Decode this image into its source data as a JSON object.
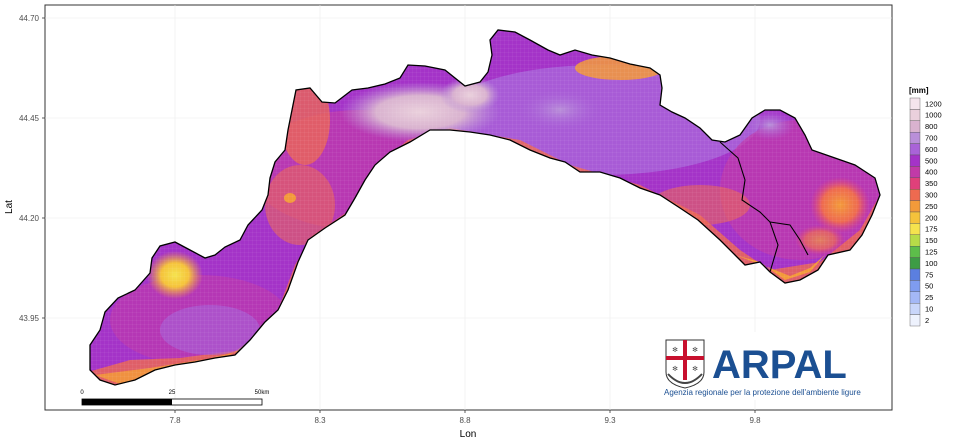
{
  "axes": {
    "xlabel": "Lon",
    "ylabel": "Lat",
    "x_ticks": [
      "7.8",
      "8.3",
      "8.8",
      "9.3",
      "9.8"
    ],
    "y_ticks": [
      "44.70",
      "44.45",
      "44.20",
      "43.95"
    ]
  },
  "legend": {
    "title": "[mm]",
    "levels": [
      {
        "label": "1200",
        "color": "#f4e4ec"
      },
      {
        "label": "1000",
        "color": "#ead0dc"
      },
      {
        "label": "800",
        "color": "#d9b2cf"
      },
      {
        "label": "700",
        "color": "#b98fd9"
      },
      {
        "label": "600",
        "color": "#a963d8"
      },
      {
        "label": "500",
        "color": "#a433c8"
      },
      {
        "label": "400",
        "color": "#c13aa8"
      },
      {
        "label": "350",
        "color": "#e0407a"
      },
      {
        "label": "300",
        "color": "#ee6a50"
      },
      {
        "label": "250",
        "color": "#f39a3a"
      },
      {
        "label": "200",
        "color": "#f5c23b"
      },
      {
        "label": "175",
        "color": "#f5e34e"
      },
      {
        "label": "150",
        "color": "#b7dc48"
      },
      {
        "label": "125",
        "color": "#5dbe4a"
      },
      {
        "label": "100",
        "color": "#3d9c45"
      },
      {
        "label": "75",
        "color": "#5b7fe0"
      },
      {
        "label": "50",
        "color": "#7f9cf0"
      },
      {
        "label": "25",
        "color": "#a4b8f6"
      },
      {
        "label": "10",
        "color": "#c9d6fa"
      },
      {
        "label": "2",
        "color": "#eef2fd"
      }
    ]
  },
  "scale_bar": {
    "labels": [
      "0",
      "25",
      "50km"
    ]
  },
  "logo": {
    "name": "ARPAL",
    "subtitle": "Agenzia regionale per la protezione dell'ambiente ligure",
    "color": "#1b4f92"
  }
}
